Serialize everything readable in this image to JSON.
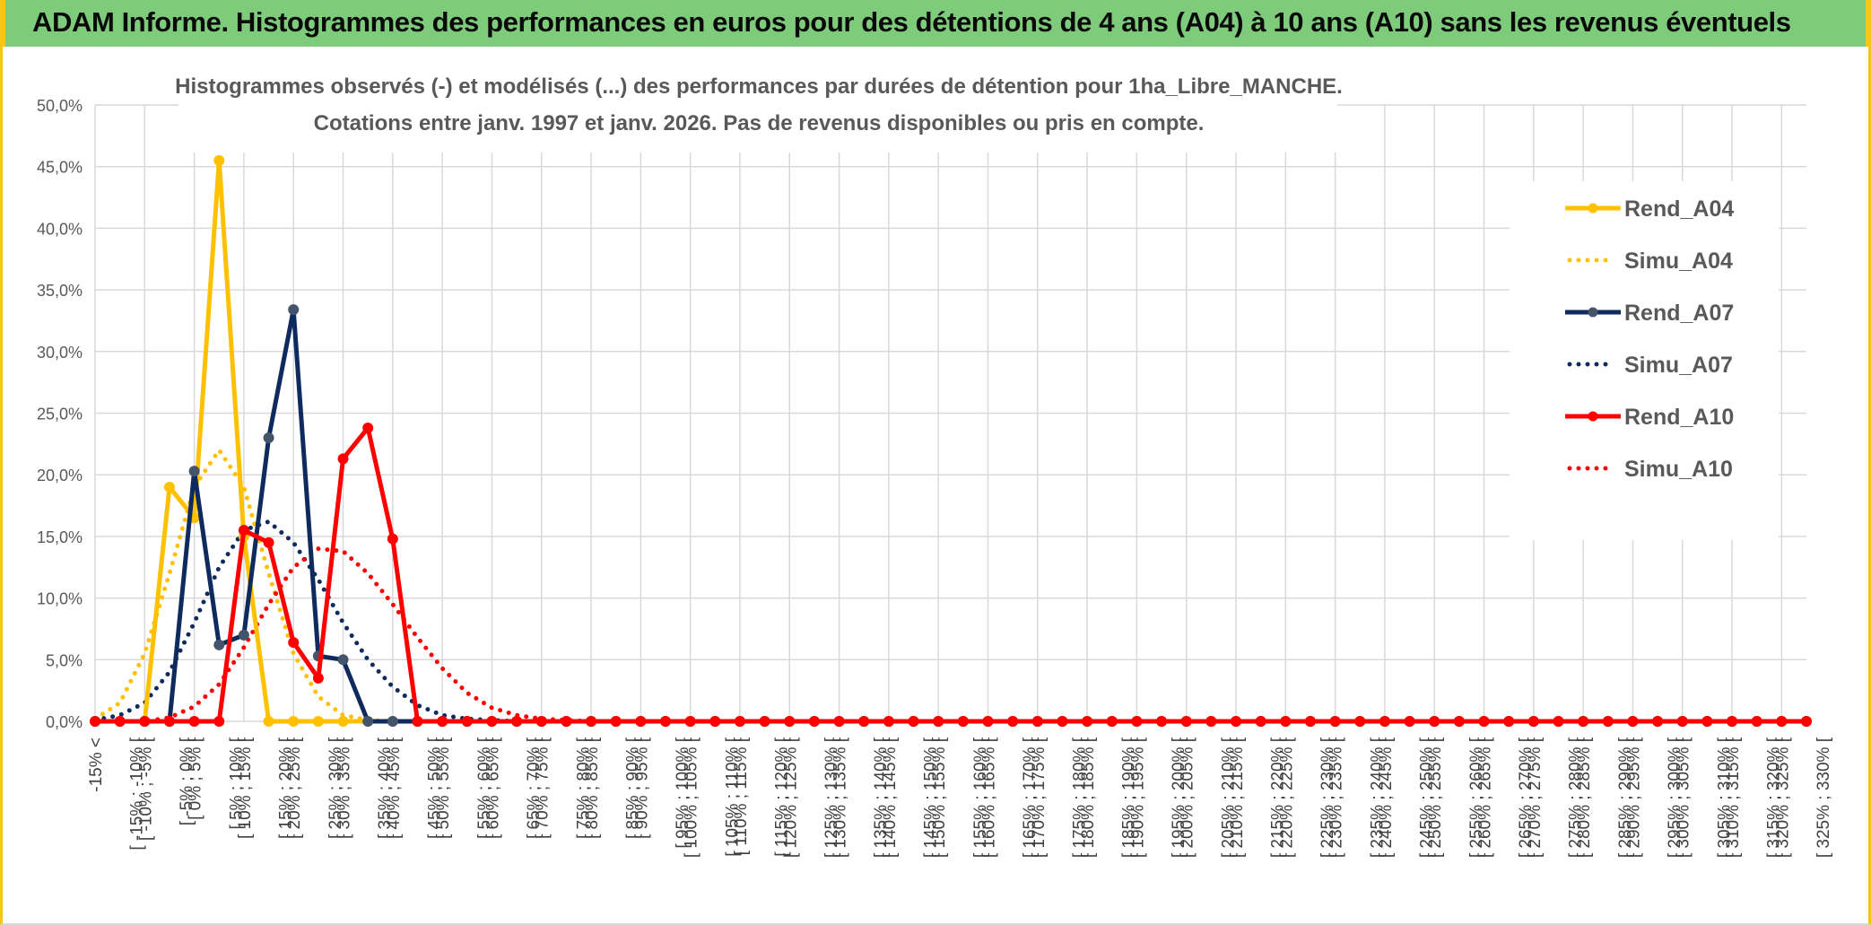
{
  "header": {
    "title": "ADAM Informe. Histogrammes des performances en euros pour des détentions de 4 ans (A04) à 10 ans (A10) sans les revenus éventuels"
  },
  "colors": {
    "banner_bg": "#7ecb7b",
    "frame_accent": "#f5c518",
    "A04": "#ffc000",
    "A07": "#0f2a5c",
    "A07_markers": "#44546a",
    "A10": "#ff0000"
  },
  "chart_data": {
    "type": "line",
    "title": "Histogrammes observés (-) et modélisés (...) des performances par durées de détention pour 1ha_Libre_MANCHE.",
    "subtitle": "Cotations entre janv. 1997 et janv. 2026. Pas de revenus disponibles ou pris en compte.",
    "xlabel": "",
    "ylabel": "",
    "ylim": [
      0,
      50
    ],
    "y_ticks": [
      "0,0%",
      "5,0%",
      "10,0%",
      "15,0%",
      "20,0%",
      "25,0%",
      "30,0%",
      "35,0%",
      "40,0%",
      "45,0%",
      "50,0%"
    ],
    "grid": true,
    "legend_position": "right",
    "categories": [
      "-15% <",
      "[ -15% ; -10% [",
      "[ -10% ; -5% [",
      "[ -5% ; 0% [",
      "[ 0% ; 5% [",
      "[ 5% ; 10% [",
      "[ 10% ; 15% [",
      "[ 15% ; 20% [",
      "[ 20% ; 25% [",
      "[ 25% ; 30% [",
      "[ 30% ; 35% [",
      "[ 35% ; 40% [",
      "[ 40% ; 45% [",
      "[ 45% ; 50% [",
      "[ 50% ; 55% [",
      "[ 55% ; 60% [",
      "[ 60% ; 65% [",
      "[ 65% ; 70% [",
      "[ 70% ; 75% [",
      "[ 75% ; 80% [",
      "[ 80% ; 85% [",
      "[ 85% ; 90% [",
      "[ 90% ; 95% [",
      "[ 95% ; 100% [",
      "[ 100% ; 105% [",
      "[ 105% ; 110% [",
      "[ 110% ; 115% [",
      "[ 115% ; 120% [",
      "[ 120% ; 125% [",
      "[ 125% ; 130% [",
      "[ 130% ; 135% [",
      "[ 135% ; 140% [",
      "[ 140% ; 145% [",
      "[ 145% ; 150% [",
      "[ 150% ; 155% [",
      "[ 155% ; 160% [",
      "[ 160% ; 165% [",
      "[ 165% ; 170% [",
      "[ 170% ; 175% [",
      "[ 175% ; 180% [",
      "[ 180% ; 185% [",
      "[ 185% ; 190% [",
      "[ 190% ; 195% [",
      "[ 195% ; 200% [",
      "[ 200% ; 205% [",
      "[ 205% ; 210% [",
      "[ 210% ; 215% [",
      "[ 215% ; 220% [",
      "[ 220% ; 225% [",
      "[ 225% ; 230% [",
      "[ 230% ; 235% [",
      "[ 235% ; 240% [",
      "[ 240% ; 245% [",
      "[ 245% ; 250% [",
      "[ 250% ; 255% [",
      "[ 255% ; 260% [",
      "[ 260% ; 265% [",
      "[ 265% ; 270% [",
      "[ 270% ; 275% [",
      "[ 275% ; 280% [",
      "[ 280% ; 285% [",
      "[ 285% ; 290% [",
      "[ 290% ; 295% [",
      "[ 295% ; 300% [",
      "[ 300% ; 305% [",
      "[ 305% ; 310% [",
      "[ 310% ; 315% [",
      "[ 315% ; 320% [",
      "[ 320% ; 325% [",
      "[ 325% ; 330% ["
    ],
    "series": [
      {
        "name": "Rend_A04",
        "style": "solid",
        "color": "#ffc000",
        "values": [
          0,
          0,
          0,
          19.0,
          16.5,
          45.5,
          15.0,
          0,
          0,
          0,
          0,
          0,
          0,
          0,
          0,
          0,
          0,
          0,
          0,
          0,
          0,
          0,
          0,
          0,
          0,
          0,
          0,
          0,
          0,
          0,
          0,
          0,
          0,
          0,
          0,
          0,
          0,
          0,
          0,
          0,
          0,
          0,
          0,
          0,
          0,
          0,
          0,
          0,
          0,
          0,
          0,
          0,
          0,
          0,
          0,
          0,
          0,
          0,
          0,
          0,
          0,
          0,
          0,
          0,
          0,
          0,
          0,
          0,
          0,
          0
        ]
      },
      {
        "name": "Simu_A04",
        "style": "dotted",
        "color": "#ffc000",
        "values": [
          0.2,
          1.5,
          5.5,
          12.0,
          19.0,
          22.0,
          19.0,
          12.0,
          5.5,
          2.0,
          0.5,
          0.1,
          0,
          0,
          0,
          0,
          0,
          0,
          0,
          0,
          0,
          0,
          0,
          0,
          0,
          0,
          0,
          0,
          0,
          0,
          0,
          0,
          0,
          0,
          0,
          0,
          0,
          0,
          0,
          0,
          0,
          0,
          0,
          0,
          0,
          0,
          0,
          0,
          0,
          0,
          0,
          0,
          0,
          0,
          0,
          0,
          0,
          0,
          0,
          0,
          0,
          0,
          0,
          0,
          0,
          0,
          0,
          0,
          0,
          0
        ]
      },
      {
        "name": "Rend_A07",
        "style": "solid",
        "color": "#0f2a5c",
        "values": [
          0,
          0,
          0,
          0,
          20.3,
          6.2,
          7.0,
          23.0,
          33.4,
          5.3,
          5.0,
          0,
          0,
          0,
          0,
          0,
          0,
          0,
          0,
          0,
          0,
          0,
          0,
          0,
          0,
          0,
          0,
          0,
          0,
          0,
          0,
          0,
          0,
          0,
          0,
          0,
          0,
          0,
          0,
          0,
          0,
          0,
          0,
          0,
          0,
          0,
          0,
          0,
          0,
          0,
          0,
          0,
          0,
          0,
          0,
          0,
          0,
          0,
          0,
          0,
          0,
          0,
          0,
          0,
          0,
          0,
          0,
          0,
          0,
          0
        ]
      },
      {
        "name": "Simu_A07",
        "style": "dotted",
        "color": "#0f2a5c",
        "values": [
          0.1,
          0.5,
          1.5,
          4.0,
          8.0,
          12.5,
          15.5,
          16.2,
          14.5,
          11.5,
          8.0,
          5.0,
          2.8,
          1.3,
          0.5,
          0.2,
          0.1,
          0,
          0,
          0,
          0,
          0,
          0,
          0,
          0,
          0,
          0,
          0,
          0,
          0,
          0,
          0,
          0,
          0,
          0,
          0,
          0,
          0,
          0,
          0,
          0,
          0,
          0,
          0,
          0,
          0,
          0,
          0,
          0,
          0,
          0,
          0,
          0,
          0,
          0,
          0,
          0,
          0,
          0,
          0,
          0,
          0,
          0,
          0,
          0,
          0,
          0,
          0,
          0,
          0
        ]
      },
      {
        "name": "Rend_A10",
        "style": "solid",
        "color": "#ff0000",
        "values": [
          0,
          0,
          0,
          0,
          0,
          0,
          15.5,
          14.5,
          6.4,
          3.5,
          21.3,
          23.8,
          14.8,
          0,
          0,
          0,
          0,
          0,
          0,
          0,
          0,
          0,
          0,
          0,
          0,
          0,
          0,
          0,
          0,
          0,
          0,
          0,
          0,
          0,
          0,
          0,
          0,
          0,
          0,
          0,
          0,
          0,
          0,
          0,
          0,
          0,
          0,
          0,
          0,
          0,
          0,
          0,
          0,
          0,
          0,
          0,
          0,
          0,
          0,
          0,
          0,
          0,
          0,
          0,
          0,
          0,
          0,
          0,
          0,
          0
        ]
      },
      {
        "name": "Simu_A10",
        "style": "dotted",
        "color": "#ff0000",
        "values": [
          0,
          0,
          0,
          0.3,
          1.2,
          3.0,
          6.0,
          9.5,
          12.5,
          14.0,
          13.8,
          12.0,
          9.5,
          6.8,
          4.3,
          2.3,
          1.1,
          0.5,
          0.2,
          0.1,
          0,
          0,
          0,
          0,
          0,
          0,
          0,
          0,
          0,
          0,
          0,
          0,
          0,
          0,
          0,
          0,
          0,
          0,
          0,
          0,
          0,
          0,
          0,
          0,
          0,
          0,
          0,
          0,
          0,
          0,
          0,
          0,
          0,
          0,
          0,
          0,
          0,
          0,
          0,
          0,
          0,
          0,
          0,
          0,
          0,
          0,
          0,
          0,
          0,
          0
        ]
      }
    ]
  }
}
